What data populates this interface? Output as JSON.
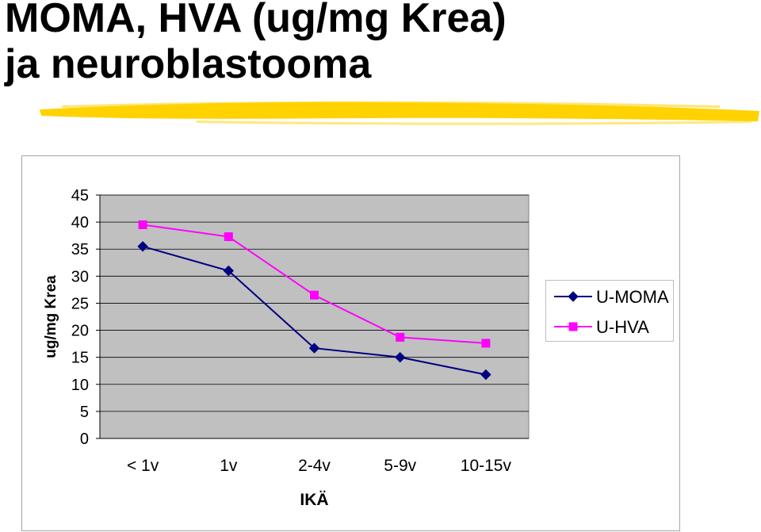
{
  "slide": {
    "title_line1": "MOMA, HVA (ug/mg Krea)",
    "title_line2": "ja neuroblastooma",
    "highlight_color": "#ffd200"
  },
  "chart_data": {
    "type": "line",
    "categories": [
      "< 1v",
      "1v",
      "2-4v",
      "5-9v",
      "10-15v"
    ],
    "series": [
      {
        "name": "U-MOMA",
        "values": [
          35.5,
          31,
          16.7,
          15,
          11.8
        ],
        "color": "#000080",
        "marker": "diamond"
      },
      {
        "name": "U-HVA",
        "values": [
          39.5,
          37.3,
          26.5,
          18.7,
          17.6
        ],
        "color": "#ff00ff",
        "marker": "square"
      }
    ],
    "xlabel": "IKÄ",
    "ylabel": "ug/mg Krea",
    "ylim": [
      0,
      45
    ],
    "yticks": [
      0,
      5,
      10,
      15,
      20,
      25,
      30,
      35,
      40,
      45
    ],
    "grid": true,
    "plot_background": "#c0c0c0",
    "legend_position": "right"
  }
}
